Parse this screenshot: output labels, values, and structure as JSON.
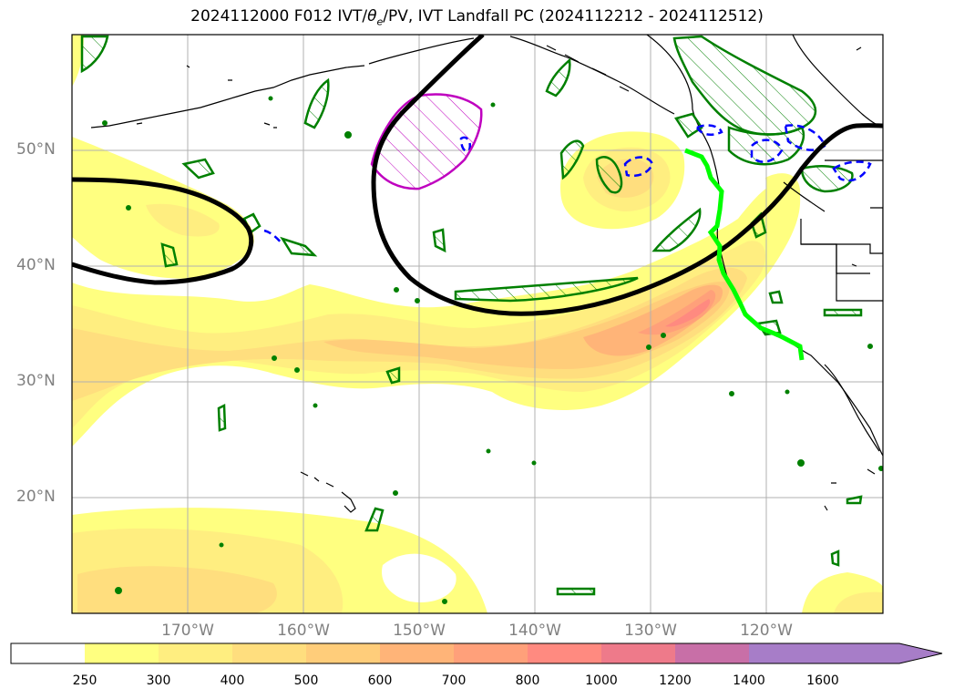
{
  "title": {
    "prefix": "2024112000 F012 IVT/",
    "theta": "θ",
    "sub": "e",
    "suffix": "/PV, IVT Landfall PC (2024112212 - 2024112512)"
  },
  "map": {
    "lat_labels": [
      "50°N",
      "40°N",
      "30°N",
      "20°N"
    ],
    "lon_labels": [
      "170°W",
      "160°W",
      "150°W",
      "140°W",
      "130°W",
      "120°W"
    ],
    "colors": {
      "coast": "#000000",
      "theta_e_contour": "#000000",
      "ivt_landfall_pc": "#00ff00",
      "green_contour": "#008000",
      "blue_dashed": "#0000ff",
      "magenta_pv": "#bf00bf",
      "grid": "#b0b0b0"
    }
  },
  "colorbar": {
    "labels": [
      "250",
      "300",
      "400",
      "500",
      "600",
      "700",
      "800",
      "1000",
      "1200",
      "1400",
      "1600"
    ],
    "colors": [
      "#ffffff",
      "#ffff80",
      "#ffee80",
      "#ffde7e",
      "#ffcd7a",
      "#ffb478",
      "#ffa07a",
      "#ff8a80",
      "#ee7a8a",
      "#c86fa7",
      "#a77dc8"
    ],
    "extend": "max"
  }
}
